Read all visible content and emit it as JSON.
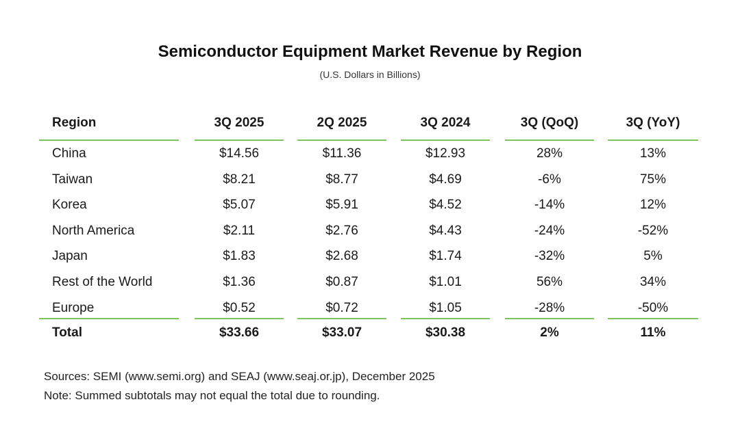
{
  "title": "Semiconductor Equipment Market Revenue by Region",
  "subtitle": "(U.S. Dollars in Billions)",
  "table": {
    "headers": [
      "Region",
      "3Q 2025",
      "2Q 2025",
      "3Q 2024",
      "3Q (QoQ)",
      "3Q (YoY)"
    ],
    "rows": [
      [
        "China",
        "$14.56",
        "$11.36",
        "$12.93",
        "28%",
        "13%"
      ],
      [
        "Taiwan",
        "$8.21",
        "$8.77",
        "$4.69",
        "-6%",
        "75%"
      ],
      [
        "Korea",
        "$5.07",
        "$5.91",
        "$4.52",
        "-14%",
        "12%"
      ],
      [
        "North America",
        "$2.11",
        "$2.76",
        "$4.43",
        "-24%",
        "-52%"
      ],
      [
        "Japan",
        "$1.83",
        "$2.68",
        "$1.74",
        "-32%",
        "5%"
      ],
      [
        "Rest of the World",
        "$1.36",
        "$0.87",
        "$1.01",
        "56%",
        "34%"
      ],
      [
        "Europe",
        "$0.52",
        "$0.72",
        "$1.05",
        "-28%",
        "-50%"
      ]
    ],
    "total": [
      "Total",
      "$33.66",
      "$33.07",
      "$30.38",
      "2%",
      "11%"
    ]
  },
  "footer": {
    "sources": "Sources: SEMI (www.semi.org) and SEAJ (www.seaj.or.jp), December 2025",
    "note": "Note: Summed subtotals may not equal the total due to rounding."
  },
  "colors": {
    "rule": "#7dc45a"
  }
}
